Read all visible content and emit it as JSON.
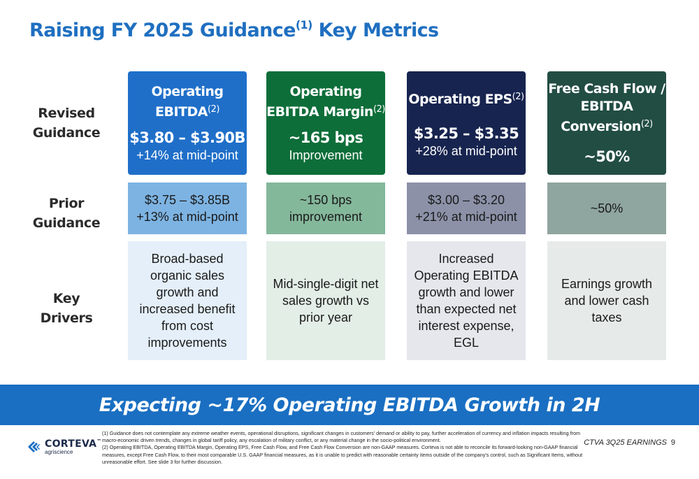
{
  "title": {
    "text": "Raising FY 2025 Guidance",
    "sup": "(1)",
    "suffix": "Key Metrics"
  },
  "row_labels": {
    "revised_line1": "Revised",
    "revised_line2": "Guidance",
    "prior_line1": "Prior",
    "prior_line2": "Guidance",
    "drivers": "Key Drivers"
  },
  "metrics": [
    {
      "title_line1": "Operating",
      "title_line2": "EBITDA",
      "title_sup": "(2)",
      "value": "$3.80 – $3.90B",
      "sub": "+14% at mid-point",
      "prior_line1": "$3.75 – $3.85B",
      "prior_line2": "+13% at mid-point",
      "driver": "Broad-based organic sales growth and increased benefit from cost improvements",
      "color": "#1f6fc9",
      "prior_color": "#7db3e2",
      "driver_color": "#e4eff9"
    },
    {
      "title_line1": "Operating",
      "title_line2": "EBITDA Margin",
      "title_sup": "(2)",
      "value": "~165 bps",
      "sub": "Improvement",
      "prior_line1": "~150 bps",
      "prior_line2": "improvement",
      "driver": "Mid-single-digit net sales growth vs prior year",
      "color": "#0d6e39",
      "prior_color": "#84b89b",
      "driver_color": "#e3eee7"
    },
    {
      "title_line1": "Operating EPS",
      "title_line2": "",
      "title_sup": "(2)",
      "value": "$3.25 – $3.35",
      "sub": "+28% at mid-point",
      "prior_line1": "$3.00 – $3.20",
      "prior_line2": "+21% at mid-point",
      "driver": "Increased Operating EBITDA growth and lower than expected net interest expense, EGL",
      "color": "#17244f",
      "prior_color": "#8c91a8",
      "driver_color": "#e6e7ec"
    },
    {
      "title_line1": "Free Cash Flow /",
      "title_line2": "EBITDA",
      "title_line3": "Conversion",
      "title_sup": "(2)",
      "value": "~50%",
      "sub": "",
      "prior_line1": "~50%",
      "prior_line2": "",
      "driver": "Earnings growth and lower cash taxes",
      "color": "#224d43",
      "prior_color": "#8fa59f",
      "driver_color": "#e6ebea"
    }
  ],
  "banner": "Expecting ~17% Operating EBITDA Growth in 2H",
  "logo": {
    "name": "CORTEVA",
    "tm": "™",
    "sub": "agriscience",
    "icon": "corteva-leaf-icon"
  },
  "footnotes": [
    "(1) Guidance does not contemplate any extreme weather events, operational disruptions, significant changes in customers' demand or ability to pay, further acceleration of currency and inflation impacts resulting from macro-economic driven trends, changes in global tariff policy, any escalation of military conflict, or any material change in the socio-political environment.",
    "(2)  Operating EBITDA, Operating EBITDA Margin, Operating EPS, Free Cash Flow, and Free Cash Flow Conversion are non-GAAP measures. Corteva is not able to reconcile its forward-looking non-GAAP financial measures, except Free Cash Flow, to their most comparable U.S. GAAP financial measures, as it is unable to predict with reasonable certainty items outside of the company's control, such as Significant Items, without unreasonable effort.   See slide 3 for further discussion."
  ],
  "page_ref": "CTVA 3Q25 EARNINGS",
  "page_number": "9"
}
